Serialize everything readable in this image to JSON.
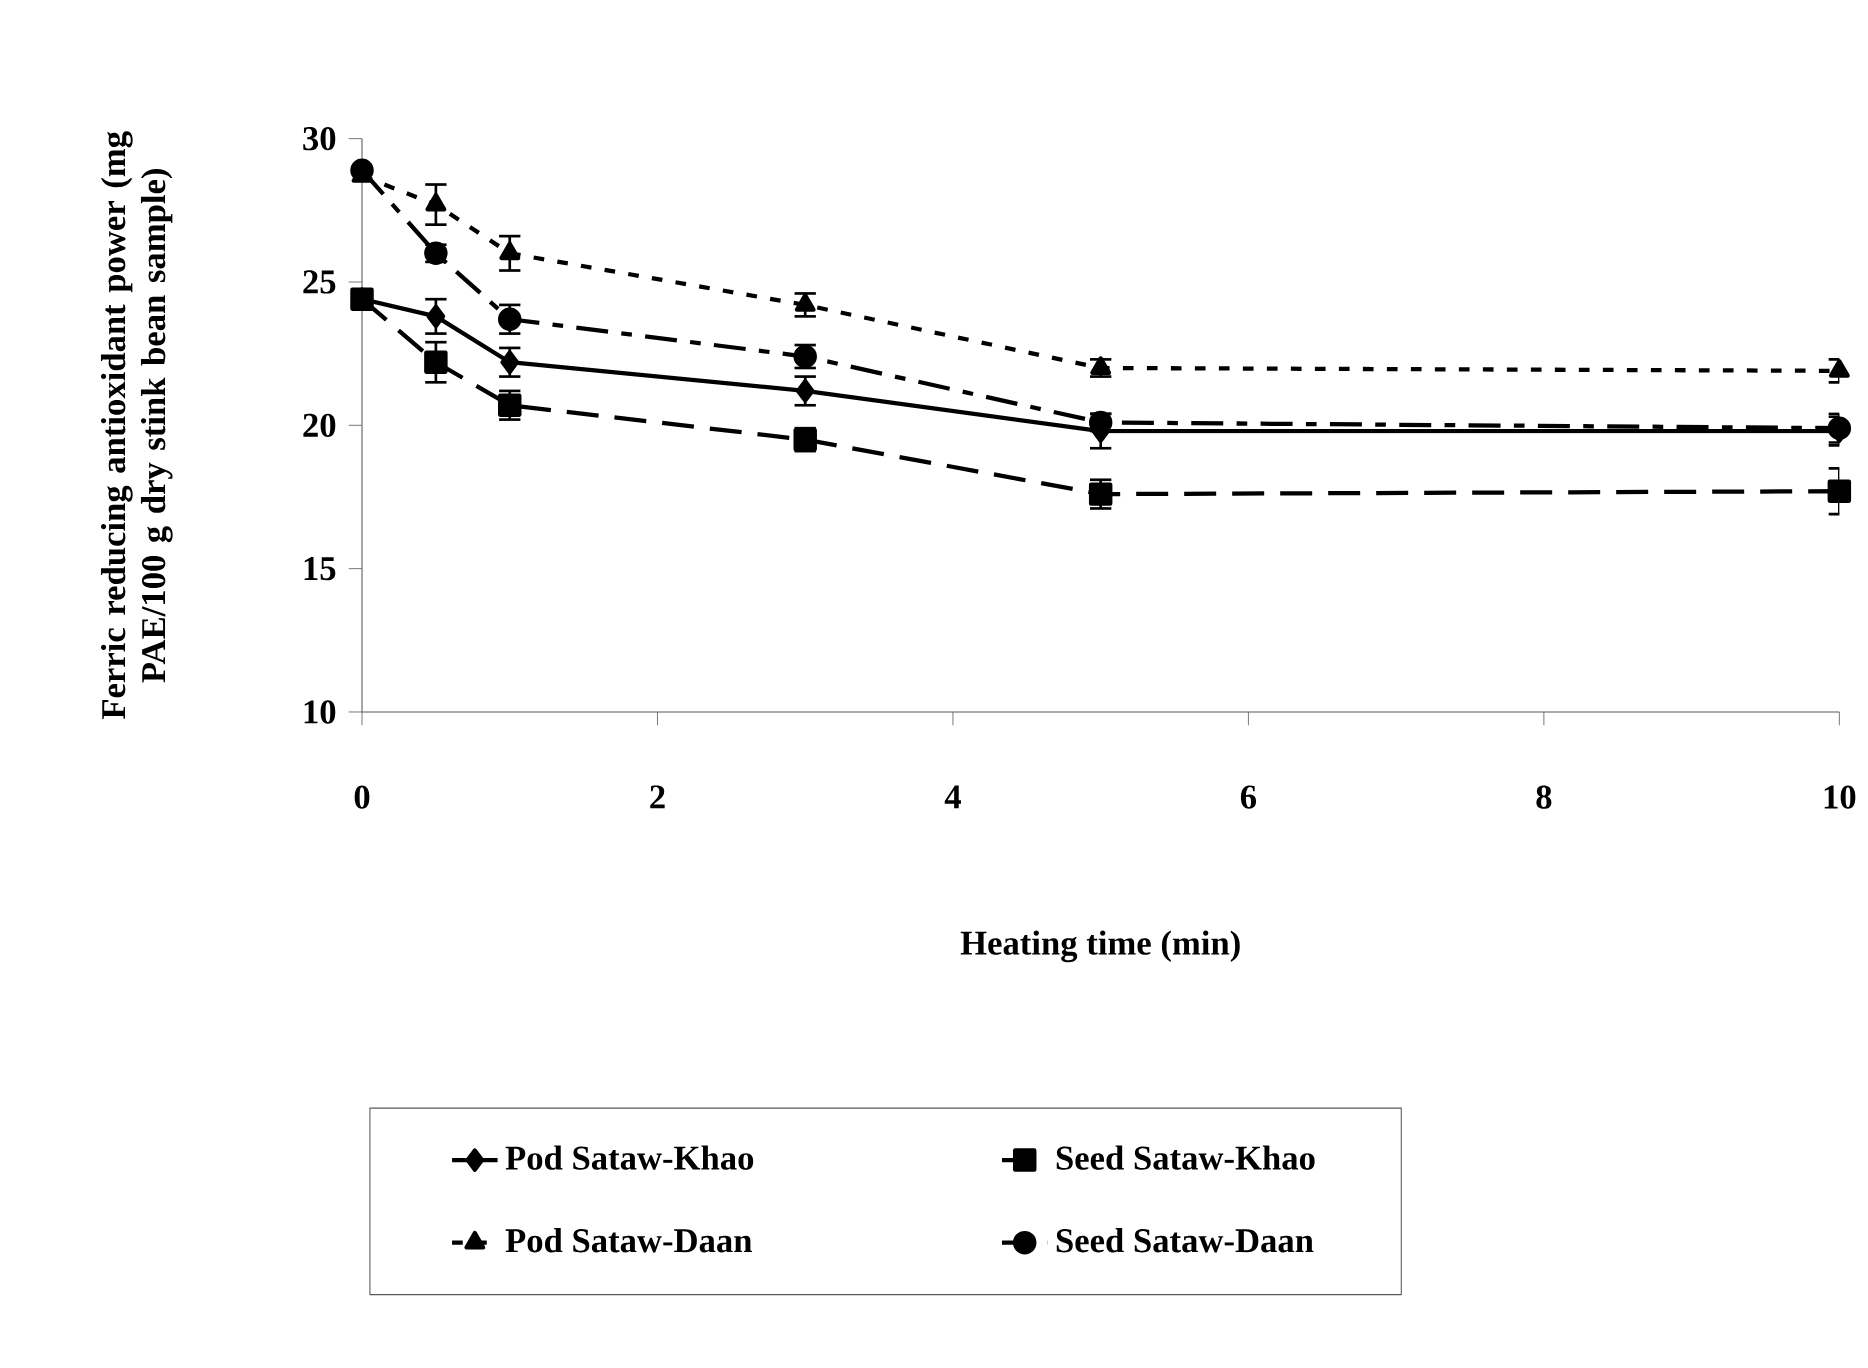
{
  "chart_data": {
    "type": "line",
    "xlabel": "Heating time (min)",
    "ylabel": "Ferric reducing antioxidant power (mg PAE/100 g dry stink bean sample)",
    "x": [
      0,
      0.5,
      1,
      3,
      5,
      10
    ],
    "xlim": [
      0,
      10
    ],
    "xticks": [
      0,
      2,
      4,
      6,
      8,
      10
    ],
    "ylim": [
      10,
      30
    ],
    "yticks": [
      10,
      15,
      20,
      25,
      30
    ],
    "grid": false,
    "legend": "bottom",
    "series": [
      {
        "name": "Pod Sataw-Khao",
        "color": "#000000",
        "marker": "diamond",
        "line_style": "solid",
        "values": [
          24.4,
          23.8,
          22.2,
          21.2,
          19.8,
          19.8
        ],
        "errors": [
          null,
          0.6,
          0.5,
          0.5,
          0.6,
          0.5
        ]
      },
      {
        "name": "Seed Sataw-Khao",
        "color": "#000000",
        "marker": "square",
        "line_style": "dashed",
        "values": [
          24.4,
          22.2,
          20.7,
          19.5,
          17.6,
          17.7
        ],
        "errors": [
          null,
          0.7,
          0.5,
          0.4,
          0.5,
          0.8
        ]
      },
      {
        "name": "Pod Sataw-Daan",
        "color": "#000000",
        "marker": "triangle",
        "line_style": "dotted",
        "values": [
          28.7,
          27.7,
          26.0,
          24.2,
          22.0,
          21.9
        ],
        "errors": [
          null,
          0.7,
          0.6,
          0.4,
          0.3,
          0.4
        ]
      },
      {
        "name": "Seed Sataw-Daan",
        "color": "#000000",
        "marker": "circle",
        "line_style": "dashdot",
        "values": [
          28.9,
          26.0,
          23.7,
          22.4,
          20.1,
          19.9
        ],
        "errors": [
          null,
          0.3,
          0.5,
          0.4,
          0.3,
          0.5
        ]
      }
    ]
  }
}
